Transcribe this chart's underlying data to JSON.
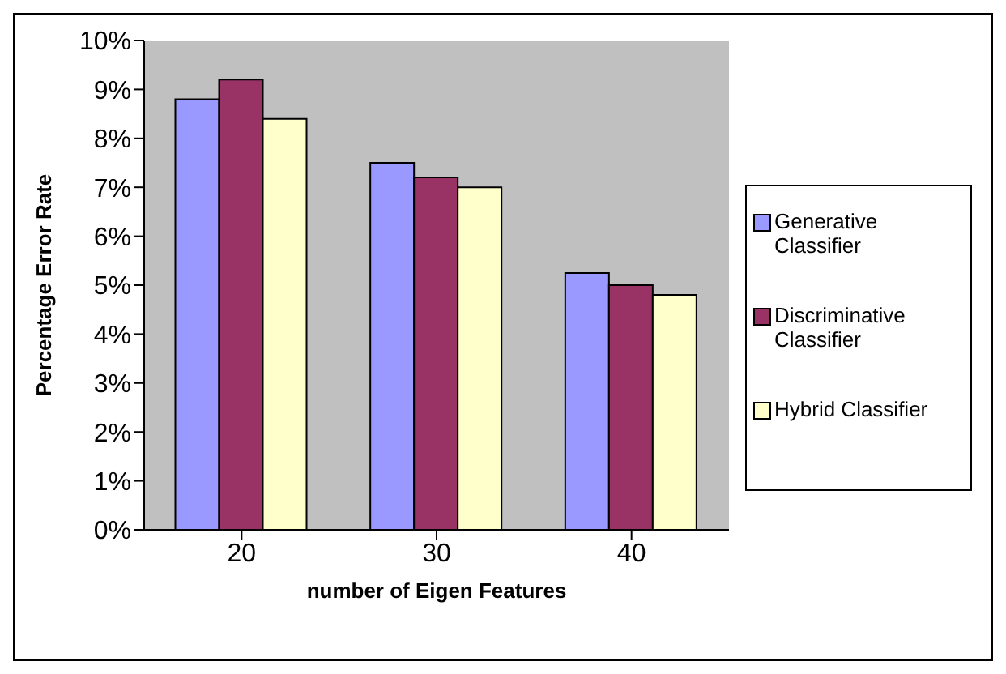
{
  "chart_data": {
    "type": "bar",
    "xlabel": "number of Eigen Features",
    "ylabel": "Percentage Error Rate",
    "categories": [
      "20",
      "30",
      "40"
    ],
    "series": [
      {
        "name": "Generative Classifier",
        "color": "#9999ff",
        "values": [
          8.8,
          7.5,
          5.25
        ]
      },
      {
        "name": "Discriminative Classifier",
        "color": "#993366",
        "values": [
          9.2,
          7.2,
          5.0
        ]
      },
      {
        "name": "Hybrid Classifier",
        "color": "#ffffcc",
        "values": [
          8.4,
          7.0,
          4.8
        ]
      }
    ],
    "ylim": [
      0,
      10
    ],
    "yticks": [
      {
        "value": 0,
        "label": "0%"
      },
      {
        "value": 1,
        "label": "1%"
      },
      {
        "value": 2,
        "label": "2%"
      },
      {
        "value": 3,
        "label": "3%"
      },
      {
        "value": 4,
        "label": "4%"
      },
      {
        "value": 5,
        "label": "5%"
      },
      {
        "value": 6,
        "label": "6%"
      },
      {
        "value": 7,
        "label": "7%"
      },
      {
        "value": 8,
        "label": "8%"
      },
      {
        "value": 9,
        "label": "9%"
      },
      {
        "value": 10,
        "label": "10%"
      }
    ],
    "grid": false,
    "legend": "right"
  }
}
